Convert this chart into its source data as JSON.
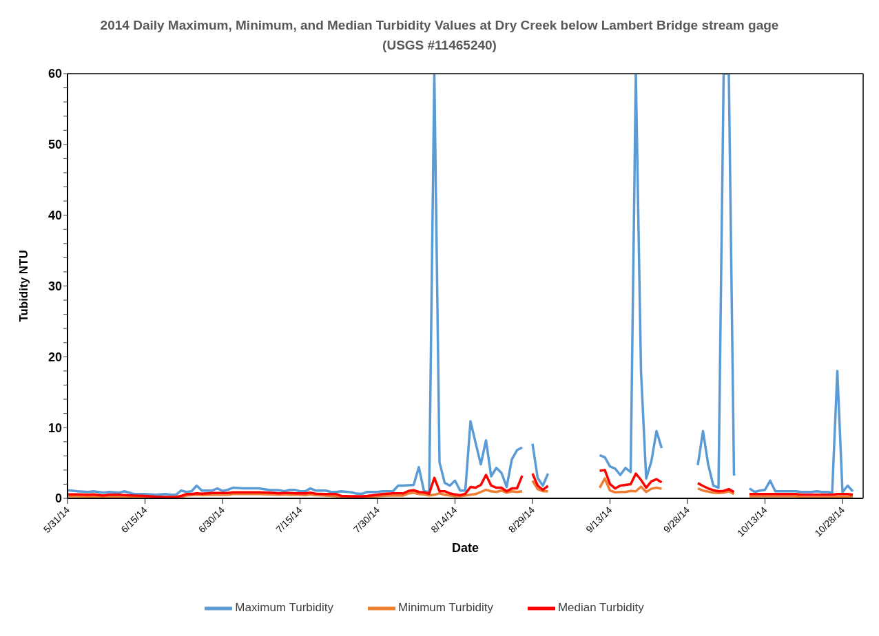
{
  "chart_data": {
    "type": "line",
    "title": "2014 Daily Maximum, Minimum, and Median Turbidity Values at Dry Creek below Lambert Bridge stream gage (USGS #11465240)",
    "xlabel": "Date",
    "ylabel": "Tubidity NTU",
    "x": [
      "2014-05-31",
      "2014-06-02",
      "2014-06-04",
      "2014-06-05",
      "2014-06-07",
      "2014-06-08",
      "2014-06-10",
      "2014-06-11",
      "2014-06-13",
      "2014-06-15",
      "2014-06-17",
      "2014-06-19",
      "2014-06-20",
      "2014-06-21",
      "2014-06-22",
      "2014-06-23",
      "2014-06-24",
      "2014-06-25",
      "2014-06-26",
      "2014-06-28",
      "2014-06-29",
      "2014-06-30",
      "2014-07-01",
      "2014-07-02",
      "2014-07-04",
      "2014-07-07",
      "2014-07-09",
      "2014-07-11",
      "2014-07-12",
      "2014-07-13",
      "2014-07-14",
      "2014-07-15",
      "2014-07-16",
      "2014-07-17",
      "2014-07-18",
      "2014-07-20",
      "2014-07-21",
      "2014-07-22",
      "2014-07-23",
      "2014-07-25",
      "2014-07-26",
      "2014-07-27",
      "2014-07-28",
      "2014-07-30",
      "2014-07-31",
      "2014-08-01",
      "2014-08-02",
      "2014-08-03",
      "2014-08-04",
      "2014-08-05",
      "2014-08-06",
      "2014-08-07",
      "2014-08-08",
      "2014-08-09",
      "2014-08-10",
      "2014-08-11",
      "2014-08-12",
      "2014-08-13",
      "2014-08-14",
      "2014-08-15",
      "2014-08-16",
      "2014-08-17",
      "2014-08-18",
      "2014-08-19",
      "2014-08-20",
      "2014-08-21",
      "2014-08-22",
      "2014-08-23",
      "2014-08-24",
      "2014-08-25",
      "2014-08-26",
      "2014-08-27",
      "2014-08-28",
      "2014-08-29",
      "2014-08-30",
      "2014-08-31",
      "2014-09-01",
      "2014-09-06",
      "2014-09-11",
      "2014-09-12",
      "2014-09-13",
      "2014-09-14",
      "2014-09-15",
      "2014-09-16",
      "2014-09-17",
      "2014-09-18",
      "2014-09-19",
      "2014-09-20",
      "2014-09-21",
      "2014-09-22",
      "2014-09-23",
      "2014-09-26",
      "2014-09-30",
      "2014-10-01",
      "2014-10-02",
      "2014-10-03",
      "2014-10-04",
      "2014-10-05",
      "2014-10-06",
      "2014-10-07",
      "2014-10-08",
      "2014-10-10",
      "2014-10-11",
      "2014-10-12",
      "2014-10-13",
      "2014-10-14",
      "2014-10-15",
      "2014-10-16",
      "2014-10-17",
      "2014-10-18",
      "2014-10-19",
      "2014-10-20",
      "2014-10-21",
      "2014-10-22",
      "2014-10-23",
      "2014-10-24",
      "2014-10-25",
      "2014-10-26",
      "2014-10-27",
      "2014-10-28",
      "2014-10-29",
      "2014-10-30"
    ],
    "series": [
      {
        "name": "Maximum Turbidity",
        "color": "#5b9bd5",
        "values": [
          1.15,
          1.0,
          0.9,
          1.0,
          0.8,
          0.9,
          0.8,
          1.0,
          0.6,
          0.6,
          0.5,
          0.6,
          0.5,
          0.5,
          1.1,
          0.9,
          1.0,
          1.8,
          1.1,
          1.1,
          1.4,
          1.05,
          1.2,
          1.5,
          1.4,
          1.4,
          1.2,
          1.15,
          1.0,
          1.2,
          1.2,
          1.0,
          1.0,
          1.4,
          1.1,
          1.1,
          0.9,
          0.9,
          1.0,
          0.85,
          0.65,
          0.65,
          0.9,
          0.9,
          1.0,
          1.0,
          1.0,
          1.8,
          1.8,
          1.85,
          1.9,
          4.4,
          1.0,
          0.9,
          60,
          5.1,
          2.2,
          1.8,
          2.5,
          1.1,
          1.1,
          10.9,
          7.8,
          4.8,
          8.2,
          3.1,
          4.3,
          3.6,
          1.6,
          5.5,
          6.8,
          7.2,
          null,
          7.7,
          2.9,
          1.8,
          3.5,
          null,
          6.1,
          5.8,
          4.5,
          4.2,
          3.3,
          4.3,
          3.7,
          60,
          18,
          2.8,
          5.2,
          9.5,
          7.1,
          null,
          4.7,
          9.5,
          4.8,
          1.8,
          1.5,
          60,
          60,
          3.2,
          null,
          1.4,
          0.9,
          1.1,
          1.2,
          2.5,
          1.0,
          1.0,
          1.0,
          1.0,
          1.0,
          0.9,
          0.9,
          0.9,
          1.0,
          0.9,
          0.9,
          0.8,
          18,
          0.85,
          1.8,
          1.0
        ]
      },
      {
        "name": "Minimum Turbidity",
        "color": "#ed7d31",
        "values": [
          0.3,
          0.3,
          0.25,
          0.3,
          0.2,
          0.25,
          0.2,
          0.2,
          0.15,
          0.1,
          0.05,
          0.05,
          0.05,
          0.05,
          0.15,
          0.4,
          0.45,
          0.5,
          0.45,
          0.5,
          0.5,
          0.5,
          0.5,
          0.6,
          0.6,
          0.6,
          0.55,
          0.5,
          0.55,
          0.5,
          0.5,
          0.5,
          0.45,
          0.55,
          0.45,
          0.4,
          0.35,
          0.3,
          0.1,
          0.05,
          0.05,
          0.05,
          0.15,
          0.3,
          0.35,
          0.4,
          0.4,
          0.4,
          0.4,
          0.7,
          0.8,
          0.6,
          0.55,
          0.4,
          0.5,
          0.7,
          0.5,
          0.4,
          0.3,
          0.3,
          0.4,
          0.5,
          0.6,
          0.9,
          1.2,
          1.0,
          0.9,
          1.1,
          0.8,
          1.0,
          0.9,
          1.0,
          null,
          2.5,
          1.3,
          1.0,
          1.0,
          null,
          1.5,
          2.8,
          1.1,
          0.85,
          0.9,
          0.9,
          1.05,
          1.0,
          1.65,
          0.9,
          1.35,
          1.5,
          1.35,
          null,
          1.4,
          1.1,
          0.95,
          0.8,
          0.75,
          0.8,
          1.0,
          0.6,
          null,
          0.3,
          0.3,
          0.3,
          0.3,
          0.3,
          0.3,
          0.3,
          0.3,
          0.3,
          0.3,
          0.15,
          0.15,
          0.15,
          0.15,
          0.15,
          0.15,
          0.15,
          0.25,
          0.25,
          0.25,
          0.25
        ]
      },
      {
        "name": "Median Turbidity",
        "color": "#ff0000",
        "values": [
          0.55,
          0.55,
          0.5,
          0.55,
          0.4,
          0.5,
          0.5,
          0.45,
          0.4,
          0.35,
          0.25,
          0.2,
          0.2,
          0.2,
          0.35,
          0.6,
          0.6,
          0.7,
          0.65,
          0.75,
          0.75,
          0.75,
          0.75,
          0.85,
          0.85,
          0.85,
          0.8,
          0.7,
          0.75,
          0.75,
          0.7,
          0.7,
          0.7,
          0.8,
          0.65,
          0.6,
          0.6,
          0.6,
          0.35,
          0.3,
          0.3,
          0.3,
          0.35,
          0.5,
          0.6,
          0.65,
          0.7,
          0.7,
          0.7,
          1.05,
          1.15,
          0.9,
          0.85,
          0.65,
          2.9,
          1.0,
          1.0,
          0.7,
          0.55,
          0.45,
          0.65,
          1.6,
          1.5,
          1.9,
          3.3,
          1.8,
          1.5,
          1.5,
          1.0,
          1.4,
          1.4,
          3.2,
          null,
          3.5,
          1.8,
          1.2,
          1.75,
          null,
          3.9,
          4.0,
          2.0,
          1.4,
          1.8,
          1.9,
          2.0,
          3.5,
          2.6,
          1.5,
          2.4,
          2.7,
          2.25,
          null,
          2.15,
          1.75,
          1.4,
          1.15,
          1.0,
          1.05,
          1.3,
          0.9,
          null,
          0.6,
          0.6,
          0.6,
          0.6,
          0.6,
          0.6,
          0.6,
          0.6,
          0.6,
          0.6,
          0.5,
          0.5,
          0.5,
          0.5,
          0.5,
          0.5,
          0.5,
          0.6,
          0.6,
          0.6,
          0.5
        ]
      }
    ],
    "xlim": [
      "2014-05-31",
      "2014-11-01"
    ],
    "xticks": [
      {
        "value": "2014-05-31",
        "label": "5/31/14"
      },
      {
        "value": "2014-06-15",
        "label": "6/15/14"
      },
      {
        "value": "2014-06-30",
        "label": "6/30/14"
      },
      {
        "value": "2014-07-15",
        "label": "7/15/14"
      },
      {
        "value": "2014-07-30",
        "label": "7/30/14"
      },
      {
        "value": "2014-08-14",
        "label": "8/14/14"
      },
      {
        "value": "2014-08-29",
        "label": "8/29/14"
      },
      {
        "value": "2014-09-13",
        "label": "9/13/14"
      },
      {
        "value": "2014-09-28",
        "label": "9/28/14"
      },
      {
        "value": "2014-10-13",
        "label": "10/13/14"
      },
      {
        "value": "2014-10-28",
        "label": "10/28/14"
      }
    ],
    "ylim": [
      0,
      60
    ],
    "yticks": [
      0,
      {
        "value": 2,
        "label": null
      },
      {
        "value": 4,
        "label": null
      },
      {
        "value": 6,
        "label": null
      },
      {
        "value": 8,
        "label": null
      },
      10,
      {
        "value": 12,
        "label": null
      },
      {
        "value": 14,
        "label": null
      },
      {
        "value": 16,
        "label": null
      },
      {
        "value": 18,
        "label": null
      },
      20,
      {
        "value": 22,
        "label": null
      },
      {
        "value": 24,
        "label": null
      },
      {
        "value": 26,
        "label": null
      },
      {
        "value": 28,
        "label": null
      },
      30,
      {
        "value": 32,
        "label": null
      },
      {
        "value": 34,
        "label": null
      },
      {
        "value": 36,
        "label": null
      },
      {
        "value": 38,
        "label": null
      },
      40,
      {
        "value": 42,
        "label": null
      },
      {
        "value": 44,
        "label": null
      },
      {
        "value": 46,
        "label": null
      },
      {
        "value": 48,
        "label": null
      },
      50,
      {
        "value": 52,
        "label": null
      },
      {
        "value": 54,
        "label": null
      },
      {
        "value": 56,
        "label": null
      },
      {
        "value": 58,
        "label": null
      },
      60
    ],
    "legend": "bottom"
  }
}
